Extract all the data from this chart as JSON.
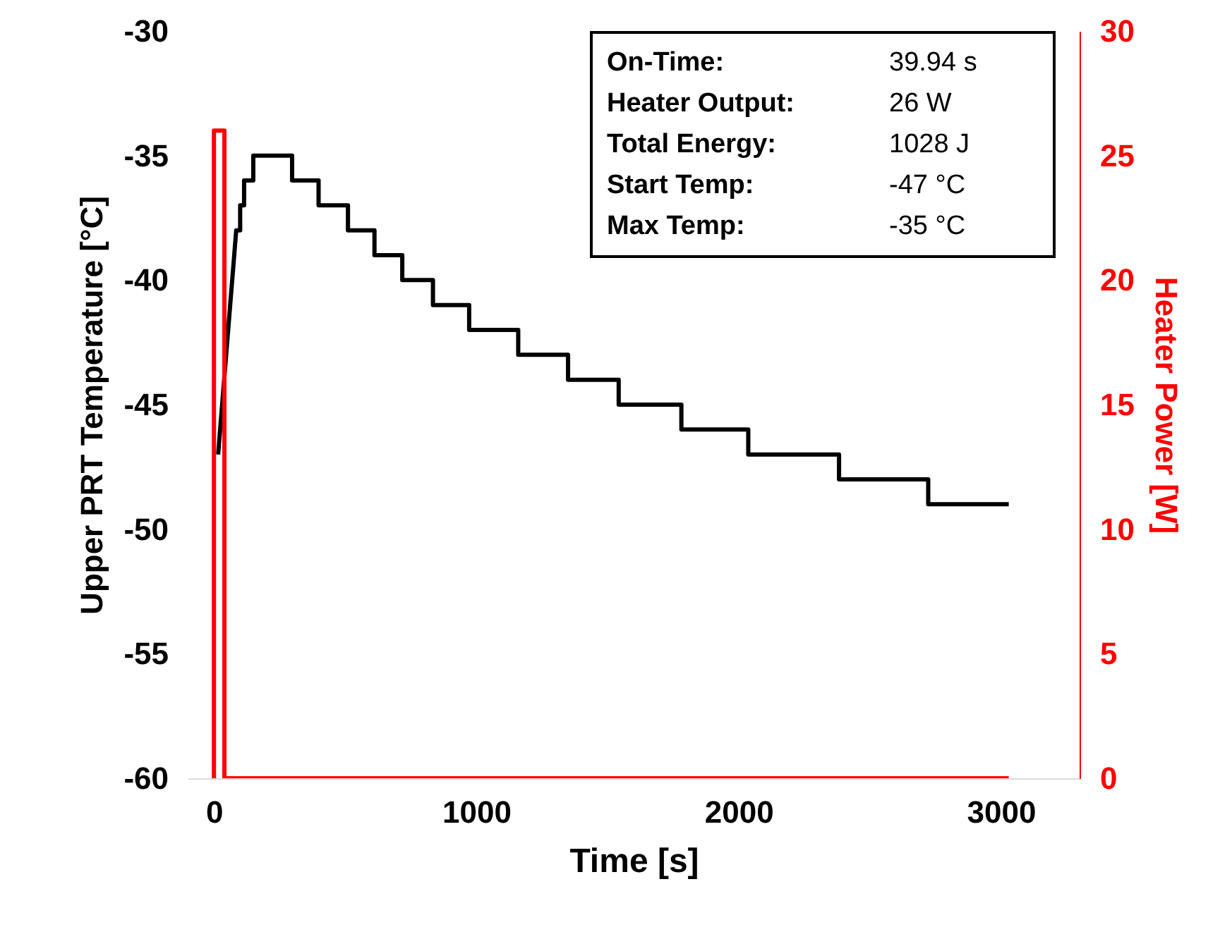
{
  "chart_data": {
    "type": "line",
    "xlabel": "Time [s]",
    "ylabel": "Upper PRT Temperature [°C]",
    "y2label": "Heater Power [W]",
    "xlim": [
      -100,
      3300
    ],
    "xticks": [
      0,
      1000,
      2000,
      3000
    ],
    "ylim": [
      -60,
      -30
    ],
    "yticks": [
      -60,
      -55,
      -50,
      -45,
      -40,
      -35,
      -30
    ],
    "y2lim": [
      0,
      30
    ],
    "y2ticks": [
      0,
      5,
      10,
      15,
      20,
      25,
      30
    ],
    "grid": false,
    "series": [
      {
        "color": "#000000",
        "axis": "y",
        "x": [
          16,
          85,
          100,
          100,
          115,
          115,
          150,
          150,
          298,
          298,
          399,
          399,
          511,
          511,
          612,
          612,
          718,
          718,
          835,
          835,
          973,
          973,
          1160,
          1160,
          1350,
          1350,
          1543,
          1543,
          1782,
          1782,
          2037,
          2037,
          2383,
          2383,
          2723,
          2723,
          3030
        ],
        "values": [
          -47,
          -38,
          -38,
          -37,
          -37,
          -36,
          -36,
          -35,
          -35,
          -36,
          -36,
          -37,
          -37,
          -38,
          -38,
          -39,
          -39,
          -40,
          -40,
          -41,
          -41,
          -42,
          -42,
          -43,
          -43,
          -44,
          -44,
          -45,
          -45,
          -46,
          -46,
          -47,
          -47,
          -48,
          -48,
          -49,
          -49
        ]
      },
      {
        "color": "#ff0000",
        "axis": "y2",
        "x": [
          0,
          0,
          40,
          40,
          3030
        ],
        "values": [
          0,
          26,
          26,
          0,
          0
        ]
      }
    ],
    "annotations": [
      "On-Time: 39.94 s",
      "Heater Output: 26 W",
      "Total Energy: 1028 J",
      "Start Temp: -47 °C",
      "Max Temp: -35 °C"
    ]
  }
}
